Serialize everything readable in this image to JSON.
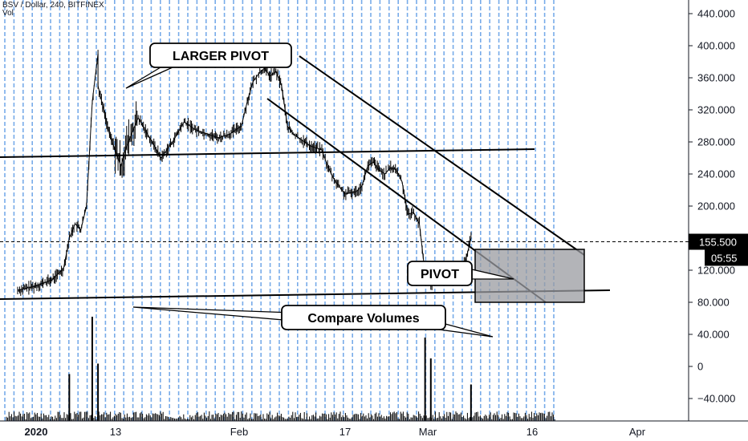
{
  "header": {
    "symbol": "BSV / Dollar, 240, BITFINEX",
    "volume_label": "Vol"
  },
  "colors": {
    "grid": "#4a90e2",
    "candle": "#000000",
    "axis_text": "#131722",
    "price_tag_bg": "#000000",
    "price_tag_text": "#ffffff",
    "box_fill": "#9a9ba0",
    "volume": "#000000"
  },
  "chart_data": {
    "type": "candlestick",
    "ylim": [
      -70,
      450
    ],
    "y_ticks": [
      {
        "value": 440,
        "label": "440.000"
      },
      {
        "value": 400,
        "label": "400.000"
      },
      {
        "value": 360,
        "label": "360.000"
      },
      {
        "value": 320,
        "label": "320.000"
      },
      {
        "value": 280,
        "label": "280.000"
      },
      {
        "value": 240,
        "label": "240.000"
      },
      {
        "value": 200,
        "label": "200.000"
      },
      {
        "value": 120,
        "label": "120.000"
      },
      {
        "value": 80,
        "label": "80.000"
      },
      {
        "value": 40,
        "label": "40.000"
      },
      {
        "value": 0,
        "label": 0.0
      },
      {
        "value": -40,
        "label": "−40.000"
      }
    ],
    "x_ticks": [
      {
        "label": "2020",
        "bold": true
      },
      {
        "label": "13",
        "bold": false
      },
      {
        "label": "Feb",
        "bold": false
      },
      {
        "label": "17",
        "bold": false
      },
      {
        "label": "Mar",
        "bold": false
      },
      {
        "label": "16",
        "bold": false
      },
      {
        "label": "Apr",
        "bold": false
      }
    ],
    "last_price": {
      "value": 155.5,
      "label": "155.500"
    },
    "countdown": "05:55",
    "price_path": [
      {
        "d": "2020-01-01",
        "p": 95
      },
      {
        "d": "2020-01-04",
        "p": 100
      },
      {
        "d": "2020-01-07",
        "p": 108
      },
      {
        "d": "2020-01-09",
        "p": 122
      },
      {
        "d": "2020-01-10",
        "p": 160
      },
      {
        "d": "2020-01-11",
        "p": 178
      },
      {
        "d": "2020-01-12",
        "p": 170
      },
      {
        "d": "2020-01-13",
        "p": 200
      },
      {
        "d": "2020-01-14",
        "p": 330
      },
      {
        "d": "2020-01-15",
        "p": 390
      },
      {
        "d": "2020-01-15",
        "p": 350
      },
      {
        "d": "2020-01-16",
        "p": 320
      },
      {
        "d": "2020-01-17",
        "p": 290
      },
      {
        "d": "2020-01-18",
        "p": 270
      },
      {
        "d": "2020-01-19",
        "p": 250
      },
      {
        "d": "2020-01-20",
        "p": 275
      },
      {
        "d": "2020-01-22",
        "p": 310
      },
      {
        "d": "2020-01-24",
        "p": 285
      },
      {
        "d": "2020-01-26",
        "p": 260
      },
      {
        "d": "2020-01-28",
        "p": 280
      },
      {
        "d": "2020-01-30",
        "p": 305
      },
      {
        "d": "2020-02-01",
        "p": 295
      },
      {
        "d": "2020-02-03",
        "p": 290
      },
      {
        "d": "2020-02-05",
        "p": 285
      },
      {
        "d": "2020-02-07",
        "p": 290
      },
      {
        "d": "2020-02-09",
        "p": 300
      },
      {
        "d": "2020-02-10",
        "p": 330
      },
      {
        "d": "2020-02-11",
        "p": 355
      },
      {
        "d": "2020-02-12",
        "p": 365
      },
      {
        "d": "2020-02-13",
        "p": 372
      },
      {
        "d": "2020-02-14",
        "p": 362
      },
      {
        "d": "2020-02-15",
        "p": 368
      },
      {
        "d": "2020-02-16",
        "p": 350
      },
      {
        "d": "2020-02-17",
        "p": 300
      },
      {
        "d": "2020-02-18",
        "p": 290
      },
      {
        "d": "2020-02-19",
        "p": 285
      },
      {
        "d": "2020-02-20",
        "p": 280
      },
      {
        "d": "2020-02-21",
        "p": 275
      },
      {
        "d": "2020-02-23",
        "p": 270
      },
      {
        "d": "2020-02-24",
        "p": 250
      },
      {
        "d": "2020-02-25",
        "p": 235
      },
      {
        "d": "2020-02-27",
        "p": 215
      },
      {
        "d": "2020-02-29",
        "p": 218
      },
      {
        "d": "2020-03-01",
        "p": 225
      },
      {
        "d": "2020-03-02",
        "p": 250
      },
      {
        "d": "2020-03-03",
        "p": 255
      },
      {
        "d": "2020-03-04",
        "p": 245
      },
      {
        "d": "2020-03-05",
        "p": 240
      },
      {
        "d": "2020-03-06",
        "p": 248
      },
      {
        "d": "2020-03-07",
        "p": 245
      },
      {
        "d": "2020-03-08",
        "p": 230
      },
      {
        "d": "2020-03-09",
        "p": 190
      },
      {
        "d": "2020-03-10",
        "p": 192
      },
      {
        "d": "2020-03-11",
        "p": 178
      },
      {
        "d": "2020-03-12",
        "p": 115
      },
      {
        "d": "2020-03-13",
        "p": 100
      },
      {
        "d": "2020-03-14",
        "p": 115
      },
      {
        "d": "2020-03-15",
        "p": 118
      },
      {
        "d": "2020-03-16",
        "p": 112
      },
      {
        "d": "2020-03-17",
        "p": 120
      },
      {
        "d": "2020-03-18",
        "p": 118
      },
      {
        "d": "2020-03-19",
        "p": 130
      },
      {
        "d": "2020-03-20",
        "p": 160
      },
      {
        "d": "2020-03-20",
        "p": 155.5
      }
    ],
    "volume_spikes": [
      {
        "d": "2020-01-14",
        "v": 1.0
      },
      {
        "d": "2020-01-15",
        "v": 0.55
      },
      {
        "d": "2020-01-10",
        "v": 0.45
      },
      {
        "d": "2020-03-12",
        "v": 0.8
      },
      {
        "d": "2020-03-13",
        "v": 0.6
      },
      {
        "d": "2020-03-20",
        "v": 0.35
      }
    ],
    "annotations": [
      {
        "label": "LARGER PIVOT"
      },
      {
        "label": "PIVOT"
      },
      {
        "label": "Compare Volumes"
      }
    ]
  }
}
